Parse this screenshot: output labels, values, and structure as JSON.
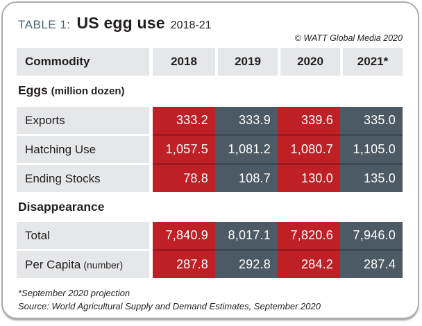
{
  "header": {
    "table_label": "TABLE 1:",
    "title": "US egg use",
    "subtitle": "2018-21",
    "copyright": "© WATT Global Media 2020"
  },
  "colors": {
    "red": "#bf2026",
    "slate": "#4b5a64",
    "header_gray": "#e6e7e8",
    "title_accent": "#4a6470"
  },
  "chart_data": {
    "type": "table",
    "columns": [
      "Commodity",
      "2018",
      "2019",
      "2020",
      "2021*"
    ],
    "column_colors": [
      "#bf2026",
      "#4b5a64",
      "#bf2026",
      "#4b5a64"
    ],
    "sections": [
      {
        "label": "Eggs",
        "label_note": "(million dozen)",
        "rows": [
          {
            "label": "Exports",
            "values": [
              "333.2",
              "333.9",
              "339.6",
              "335.0"
            ]
          },
          {
            "label": "Hatching Use",
            "values": [
              "1,057.5",
              "1,081.2",
              "1,080.7",
              "1,105.0"
            ]
          },
          {
            "label": "Ending Stocks",
            "values": [
              "78.8",
              "108.7",
              "130.0",
              "135.0"
            ]
          }
        ]
      },
      {
        "label": "Disappearance",
        "label_note": "",
        "rows": [
          {
            "label": "Total",
            "label_note": "",
            "values": [
              "7,840.9",
              "8,017.1",
              "7,820.6",
              "7,946.0"
            ]
          },
          {
            "label": "Per Capita",
            "label_note": "(number)",
            "values": [
              "287.8",
              "292.8",
              "284.2",
              "287.4"
            ]
          }
        ]
      }
    ]
  },
  "footer": {
    "note": "*September 2020 projection",
    "source": "Source: World Agricultural Supply and Demand Estimates, September 2020"
  }
}
